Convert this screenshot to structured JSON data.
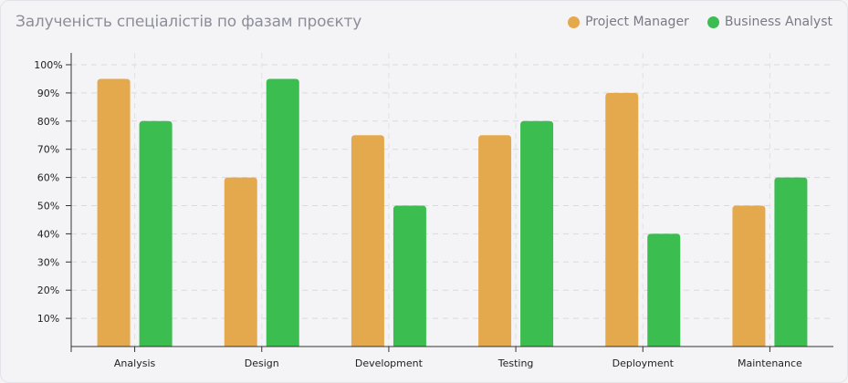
{
  "chart_data": {
    "type": "bar",
    "title": "Залученість спеціалістів по фазам проєкту",
    "xlabel": "",
    "ylabel": "",
    "ylim": [
      0,
      100
    ],
    "yticks": [
      "10%",
      "20%",
      "30%",
      "40%",
      "50%",
      "60%",
      "70%",
      "80%",
      "90%",
      "100%"
    ],
    "categories": [
      "Analysis",
      "Design",
      "Development",
      "Testing",
      "Deployment",
      "Maintenance"
    ],
    "series": [
      {
        "name": "Project Manager",
        "color": "#e5a94d",
        "values": [
          95,
          60,
          75,
          75,
          90,
          50
        ]
      },
      {
        "name": "Business Analyst",
        "color": "#3bbd4f",
        "values": [
          80,
          95,
          50,
          80,
          40,
          60
        ]
      }
    ],
    "grid": true,
    "legend_position": "top-right"
  }
}
